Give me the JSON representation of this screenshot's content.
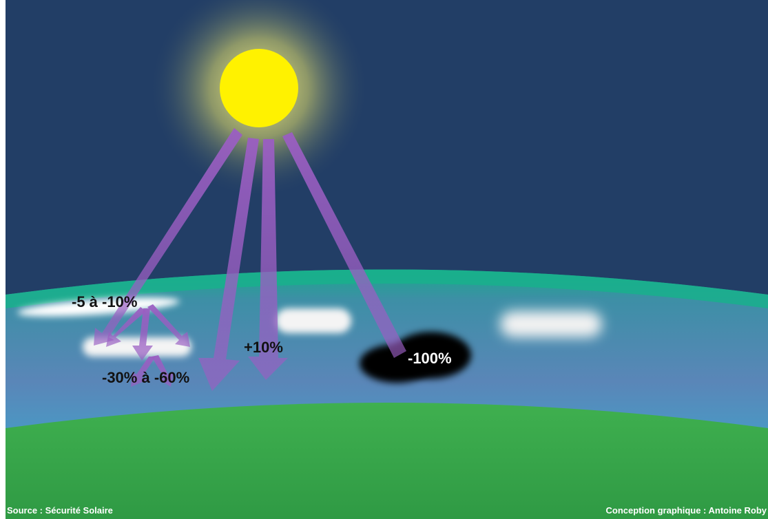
{
  "labels": {
    "thin_cloud": "-5 à -10%",
    "thick_cloud": "-30% à -60%",
    "scattered": "+10%",
    "storm_cloud": "-100%"
  },
  "credits": {
    "source": "Source : Sécurité Solaire",
    "design": "Conception graphique : Antoine Roby"
  },
  "colors": {
    "sky": "#223e66",
    "atmosphere_rim": "#1fae8e",
    "atmosphere": "#4f88b5",
    "ground": "#3aa84d",
    "sun": "#fff200",
    "uv_arrow": "#9a5ec2"
  }
}
